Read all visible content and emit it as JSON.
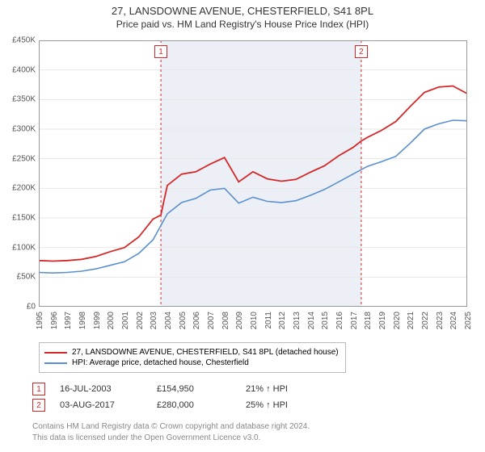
{
  "title": {
    "main": "27, LANSDOWNE AVENUE, CHESTERFIELD, S41 8PL",
    "sub": "Price paid vs. HM Land Registry's House Price Index (HPI)"
  },
  "chart": {
    "type": "line",
    "background_color": "#ffffff",
    "highlight_band_color": "#ecf0f6",
    "grid_color": "#e7e7e7",
    "axis_font_size": 10,
    "y_axis": {
      "min": 0,
      "max": 450000,
      "tick_step": 50000,
      "tick_labels": [
        "£0",
        "£50K",
        "£100K",
        "£150K",
        "£200K",
        "£250K",
        "£300K",
        "£350K",
        "£400K",
        "£450K"
      ]
    },
    "x_axis": {
      "years": [
        1995,
        1996,
        1997,
        1998,
        1999,
        2000,
        2001,
        2002,
        2003,
        2004,
        2005,
        2006,
        2007,
        2008,
        2009,
        2010,
        2011,
        2012,
        2013,
        2014,
        2015,
        2016,
        2017,
        2018,
        2019,
        2020,
        2021,
        2022,
        2023,
        2024,
        2025
      ]
    },
    "highlight_band": {
      "start_year": 2003.55,
      "end_year": 2017.58
    },
    "series": [
      {
        "name": "27, LANSDOWNE AVENUE, CHESTERFIELD, S41 8PL (detached house)",
        "color": "#d62728",
        "line_width": 1.8,
        "points": [
          [
            1995,
            78000
          ],
          [
            1996,
            77000
          ],
          [
            1997,
            78000
          ],
          [
            1998,
            80000
          ],
          [
            1999,
            85000
          ],
          [
            2000,
            93000
          ],
          [
            2001,
            100000
          ],
          [
            2002,
            118000
          ],
          [
            2003,
            148000
          ],
          [
            2003.55,
            154950
          ],
          [
            2004,
            205000
          ],
          [
            2005,
            224000
          ],
          [
            2006,
            228000
          ],
          [
            2007,
            241000
          ],
          [
            2008,
            252000
          ],
          [
            2009,
            211000
          ],
          [
            2010,
            228000
          ],
          [
            2011,
            216000
          ],
          [
            2012,
            212000
          ],
          [
            2013,
            215000
          ],
          [
            2014,
            227000
          ],
          [
            2015,
            238000
          ],
          [
            2016,
            255000
          ],
          [
            2017,
            269000
          ],
          [
            2017.58,
            280000
          ],
          [
            2018,
            286000
          ],
          [
            2019,
            298000
          ],
          [
            2020,
            313000
          ],
          [
            2021,
            338000
          ],
          [
            2022,
            362000
          ],
          [
            2023,
            371000
          ],
          [
            2024,
            373000
          ],
          [
            2025,
            360000
          ]
        ]
      },
      {
        "name": "HPI: Average price, detached house, Chesterfield",
        "color": "#5a8fcf",
        "line_width": 1.6,
        "points": [
          [
            1995,
            58000
          ],
          [
            1996,
            57000
          ],
          [
            1997,
            58000
          ],
          [
            1998,
            60000
          ],
          [
            1999,
            64000
          ],
          [
            2000,
            70000
          ],
          [
            2001,
            76000
          ],
          [
            2002,
            90000
          ],
          [
            2003,
            113000
          ],
          [
            2004,
            157000
          ],
          [
            2005,
            176000
          ],
          [
            2006,
            183000
          ],
          [
            2007,
            197000
          ],
          [
            2008,
            200000
          ],
          [
            2009,
            175000
          ],
          [
            2010,
            185000
          ],
          [
            2011,
            178000
          ],
          [
            2012,
            176000
          ],
          [
            2013,
            179000
          ],
          [
            2014,
            188000
          ],
          [
            2015,
            198000
          ],
          [
            2016,
            211000
          ],
          [
            2017,
            224000
          ],
          [
            2018,
            237000
          ],
          [
            2019,
            245000
          ],
          [
            2020,
            254000
          ],
          [
            2021,
            276000
          ],
          [
            2022,
            300000
          ],
          [
            2023,
            309000
          ],
          [
            2024,
            315000
          ],
          [
            2025,
            314000
          ]
        ]
      }
    ],
    "annotations": [
      {
        "label": "1",
        "year": 2003.55,
        "badge_above": true
      },
      {
        "label": "2",
        "year": 2017.58,
        "badge_above": true
      }
    ]
  },
  "legend": {
    "items": [
      {
        "color": "#d62728",
        "label": "27, LANSDOWNE AVENUE, CHESTERFIELD, S41 8PL (detached house)"
      },
      {
        "color": "#5a8fcf",
        "label": "HPI: Average price, detached house, Chesterfield"
      }
    ]
  },
  "sales": [
    {
      "badge": "1",
      "date": "16-JUL-2003",
      "price": "£154,950",
      "pct": "21% ↑ HPI"
    },
    {
      "badge": "2",
      "date": "03-AUG-2017",
      "price": "£280,000",
      "pct": "25% ↑ HPI"
    }
  ],
  "footer": {
    "line1": "Contains HM Land Registry data © Crown copyright and database right 2024.",
    "line2": "This data is licensed under the Open Government Licence v3.0."
  }
}
